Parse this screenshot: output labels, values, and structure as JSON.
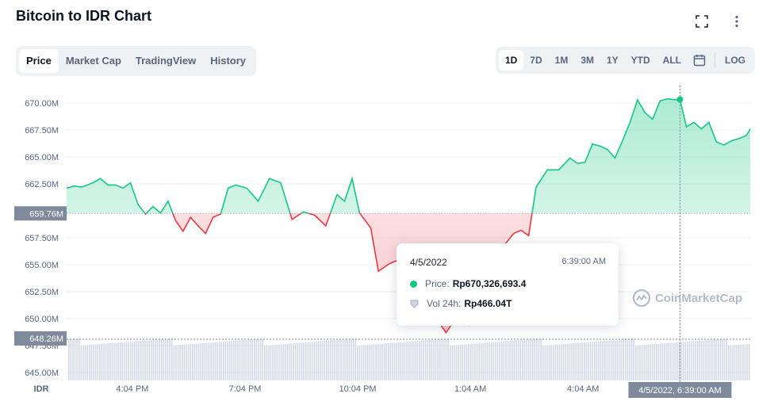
{
  "header": {
    "title": "Bitcoin to IDR Chart"
  },
  "icons": {
    "fullscreen": "fullscreen-icon",
    "more": "more-icon",
    "calendar": "calendar-icon",
    "logo": "coinmarketcap-logo"
  },
  "tabs": [
    {
      "label": "Price",
      "active": true
    },
    {
      "label": "Market Cap",
      "active": false
    },
    {
      "label": "TradingView",
      "active": false
    },
    {
      "label": "History",
      "active": false
    }
  ],
  "ranges": [
    {
      "label": "1D",
      "active": true
    },
    {
      "label": "7D",
      "active": false
    },
    {
      "label": "1M",
      "active": false
    },
    {
      "label": "3M",
      "active": false
    },
    {
      "label": "1Y",
      "active": false
    },
    {
      "label": "YTD",
      "active": false
    },
    {
      "label": "ALL",
      "active": false
    }
  ],
  "log_label": "LOG",
  "tooltip": {
    "date": "4/5/2022",
    "time": "6:39:00 AM",
    "price_label": "Price:",
    "price_value": "Rp670,326,693.4",
    "volume_label": "Vol 24h:",
    "volume_value": "Rp466.04T"
  },
  "watermark": "CoinMarketCap",
  "colors": {
    "up": "#16c784",
    "down": "#ea3943",
    "grid": "#eff2f5",
    "axis_text": "#58667e",
    "label_bg": "#808a9d"
  },
  "chart_data": {
    "type": "line",
    "currency_label": "IDR",
    "y_ticks": [
      "670.00M",
      "667.50M",
      "665.00M",
      "662.50M",
      "657.50M",
      "655.00M",
      "652.50M",
      "650.00M",
      "647.50M",
      "645.00M"
    ],
    "y_tick_values": [
      670.0,
      667.5,
      665.0,
      662.5,
      657.5,
      655.0,
      652.5,
      650.0,
      647.5,
      645.0
    ],
    "ylim": [
      645.0,
      671.5
    ],
    "x_ticks": [
      "4:04 PM",
      "7:04 PM",
      "10:04 PM",
      "1:04 AM",
      "4:04 AM"
    ],
    "x_tick_values": [
      -2.75,
      0.25,
      3.25,
      6.25,
      9.25
    ],
    "xlim": [
      -4.5,
      13.7
    ],
    "baseline_value": 659.76,
    "baseline_label": "659.76M",
    "volume_axis_label": "648.26M",
    "crosshair_label": "4/5/2022, 6:39:00 AM",
    "crosshair_x": 11.83,
    "series": [
      {
        "x": [
          -4.5,
          -4.3,
          -4.1,
          -3.8,
          -3.6,
          -3.4,
          -3.2,
          -3.0,
          -2.8,
          -2.6,
          -2.4,
          -2.2,
          -2.0,
          -1.8,
          -1.6,
          -1.4,
          -1.2,
          -1.0,
          -0.8,
          -0.6,
          -0.4,
          -0.2,
          0.0,
          0.3,
          0.6,
          0.9,
          1.2,
          1.5,
          1.8,
          2.1,
          2.4,
          2.7,
          2.9,
          3.1,
          3.3,
          3.6,
          3.8,
          4.1,
          4.3,
          4.6,
          4.8,
          5.0,
          5.2,
          5.4,
          5.6,
          5.8,
          6.0,
          6.2,
          6.5,
          6.8,
          7.0,
          7.2,
          7.4,
          7.6,
          7.8,
          8.0,
          8.3,
          8.6,
          8.9,
          9.1,
          9.3,
          9.5,
          9.7,
          9.9,
          10.1,
          10.3,
          10.5,
          10.7,
          10.9,
          11.1,
          11.3,
          11.5,
          11.7,
          11.83,
          12.0,
          12.2,
          12.4,
          12.6,
          12.8,
          13.0,
          13.2,
          13.4,
          13.6,
          13.7
        ],
        "y": [
          662.1,
          662.3,
          662.2,
          662.6,
          663.0,
          662.4,
          662.4,
          662.1,
          662.6,
          660.6,
          659.7,
          660.4,
          659.8,
          660.9,
          659.1,
          658.1,
          659.4,
          658.6,
          657.9,
          659.4,
          659.7,
          662.1,
          662.4,
          662.1,
          660.9,
          663.0,
          662.6,
          659.2,
          659.9,
          659.6,
          658.6,
          661.5,
          660.9,
          663.0,
          659.8,
          658.4,
          654.4,
          655.1,
          655.4,
          654.6,
          655.8,
          654.4,
          652.0,
          649.7,
          648.7,
          649.7,
          650.3,
          649.4,
          652.9,
          656.2,
          656.6,
          657.0,
          657.9,
          658.2,
          657.7,
          662.2,
          663.8,
          663.8,
          664.9,
          664.4,
          664.5,
          666.2,
          666.0,
          665.7,
          664.9,
          666.5,
          668.2,
          670.3,
          669.1,
          668.5,
          670.2,
          670.4,
          670.3,
          670.33,
          667.8,
          668.2,
          667.6,
          668.2,
          666.4,
          666.1,
          666.5,
          666.7,
          667.0,
          667.6
        ]
      }
    ]
  }
}
